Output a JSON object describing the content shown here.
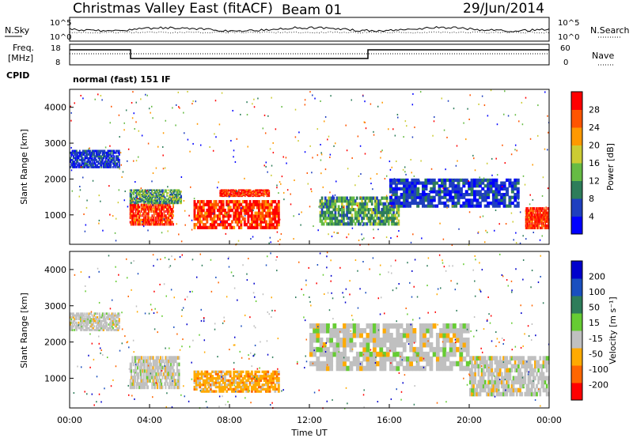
{
  "header": {
    "title": "Christmas Valley East (fitACF)",
    "beam": "Beam 01",
    "date": "29/Jun/2014"
  },
  "strip": {
    "nsky_label": "N.Sky",
    "nsearch_label": "N.Search",
    "left_ticks": [
      "10^5",
      "10^0"
    ],
    "right_ticks": [
      "10^5",
      "10^0"
    ],
    "freq_label_1": "Freq.",
    "freq_label_2": "[MHz]",
    "freq_ticks": [
      "18",
      "8"
    ],
    "nave_label": "Nave",
    "nave_ticks": [
      "60",
      "0"
    ],
    "cpid_label": "CPID",
    "cpid_value": "normal (fast) 151 IF"
  },
  "colors": {
    "power_scale": [
      "#0000ff",
      "#1f3fbf",
      "#2e7d5a",
      "#66bb44",
      "#cccc33",
      "#ff9900",
      "#ff5500",
      "#ff0000"
    ],
    "velocity_scale": [
      "#0000cc",
      "#1a4fbf",
      "#2e7d5a",
      "#66cc33",
      "#c0c0c0",
      "#ffaa00",
      "#ff6600",
      "#ff0000"
    ]
  },
  "chart_data": [
    {
      "type": "heatmap",
      "name": "power",
      "ylabel": "Slant Range [km]",
      "yticks": [
        "4000",
        "3000",
        "2000",
        "1000"
      ],
      "ylim": [
        180,
        4500
      ],
      "xlim": [
        0,
        24
      ],
      "xticks": [
        "00:00",
        "04:00",
        "08:00",
        "12:00",
        "16:00",
        "20:00",
        "00:00"
      ],
      "colorbar_label": "Power [dB]",
      "colorbar_ticks": [
        "28",
        "24",
        "20",
        "16",
        "12",
        "8",
        "4"
      ],
      "colorbar_range": [
        0,
        30
      ],
      "regions": [
        {
          "t0": 3.0,
          "t1": 5.2,
          "r0": 700,
          "r1": 1300,
          "level": "high"
        },
        {
          "t0": 3.0,
          "t1": 5.6,
          "r0": 1300,
          "r1": 1700,
          "level": "mid"
        },
        {
          "t0": 6.2,
          "t1": 10.5,
          "r0": 600,
          "r1": 1400,
          "level": "high"
        },
        {
          "t0": 7.5,
          "t1": 10.0,
          "r0": 1500,
          "r1": 1700,
          "level": "high"
        },
        {
          "t0": 12.5,
          "t1": 16.5,
          "r0": 700,
          "r1": 1500,
          "level": "mid"
        },
        {
          "t0": 16.0,
          "t1": 22.5,
          "r0": 1200,
          "r1": 2000,
          "level": "low"
        },
        {
          "t0": 22.8,
          "t1": 24.0,
          "r0": 600,
          "r1": 1200,
          "level": "high"
        },
        {
          "t0": 0.0,
          "t1": 2.5,
          "r0": 2300,
          "r1": 2800,
          "level": "low"
        }
      ]
    },
    {
      "type": "heatmap",
      "name": "velocity",
      "ylabel": "Slant Range [km]",
      "yticks": [
        "4000",
        "3000",
        "2000",
        "1000"
      ],
      "ylim": [
        180,
        4500
      ],
      "xlim": [
        0,
        24
      ],
      "xticks": [
        "00:00",
        "04:00",
        "08:00",
        "12:00",
        "16:00",
        "20:00",
        "00:00"
      ],
      "xlabel": "Time UT",
      "colorbar_label": "Velocity [m s⁻¹]",
      "colorbar_ticks": [
        "200",
        "100",
        "50",
        "15",
        "-15",
        "-50",
        "-100",
        "-200"
      ],
      "colorbar_range": [
        -250,
        250
      ],
      "regions": [
        {
          "t0": 3.0,
          "t1": 5.5,
          "r0": 700,
          "r1": 1600,
          "level": "zero"
        },
        {
          "t0": 6.2,
          "t1": 10.5,
          "r0": 600,
          "r1": 1200,
          "level": "away"
        },
        {
          "t0": 12.0,
          "t1": 20.0,
          "r0": 1200,
          "r1": 2500,
          "level": "zero"
        },
        {
          "t0": 0.0,
          "t1": 2.5,
          "r0": 2300,
          "r1": 2800,
          "level": "zero"
        },
        {
          "t0": 20.0,
          "t1": 24.0,
          "r0": 500,
          "r1": 1600,
          "level": "zero"
        }
      ]
    }
  ]
}
